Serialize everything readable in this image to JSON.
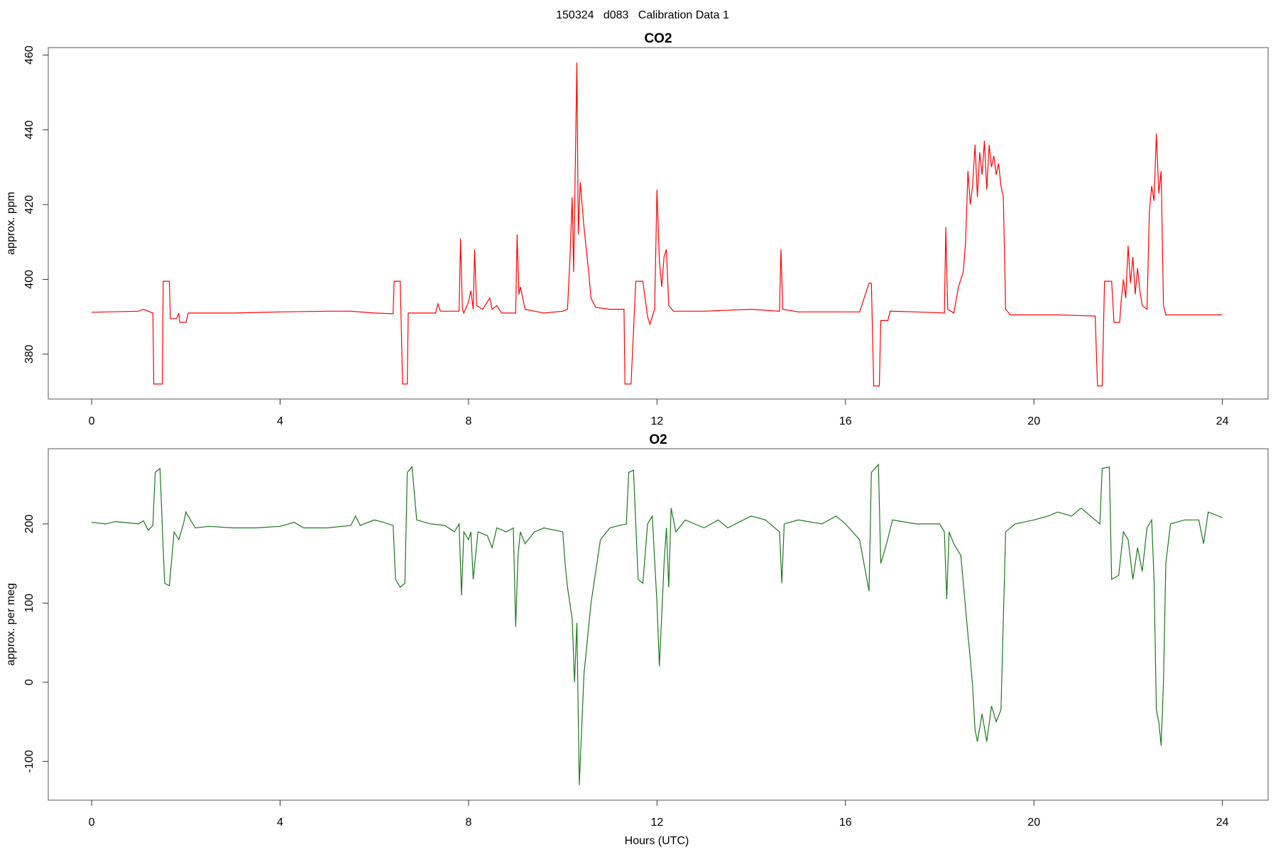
{
  "title": "150324   d083   Calibration Data 1",
  "chart_data": [
    {
      "type": "line",
      "title": "CO2",
      "ylabel": "approx. ppm",
      "color": "#ff0000",
      "xlim": [
        -0.92,
        24.97
      ],
      "xticks": [
        0,
        4,
        8,
        12,
        16,
        20,
        24
      ],
      "ylim": [
        368,
        462
      ],
      "yticks": [
        380,
        400,
        420,
        440,
        460
      ],
      "x": [
        0,
        1,
        1.1,
        1.2,
        1.3,
        1.32,
        1.5,
        1.52,
        1.65,
        1.67,
        1.8,
        1.85,
        1.87,
        2,
        2.05,
        3,
        4,
        5,
        5.5,
        6,
        6.4,
        6.42,
        6.55,
        6.6,
        6.7,
        6.72,
        7.3,
        7.35,
        7.4,
        7.8,
        7.83,
        7.87,
        7.9,
        8,
        8.05,
        8.1,
        8.13,
        8.17,
        8.3,
        8.45,
        8.5,
        8.6,
        8.7,
        9,
        9.03,
        9.07,
        9.1,
        9.2,
        9.4,
        9.6,
        10,
        10.1,
        10.15,
        10.2,
        10.23,
        10.27,
        10.3,
        10.33,
        10.37,
        10.45,
        10.55,
        10.6,
        10.7,
        11,
        11.3,
        11.32,
        11.45,
        11.55,
        11.7,
        11.8,
        11.85,
        11.95,
        12,
        12.05,
        12.1,
        12.15,
        12.2,
        12.25,
        12.35,
        13,
        14,
        14.6,
        14.63,
        14.67,
        15,
        16.3,
        16.5,
        16.55,
        16.6,
        16.72,
        16.75,
        16.9,
        16.95,
        17.5,
        18.1,
        18.13,
        18.17,
        18.3,
        18.4,
        18.5,
        18.55,
        18.6,
        18.65,
        18.7,
        18.75,
        18.8,
        18.85,
        18.9,
        18.95,
        19,
        19.05,
        19.1,
        19.15,
        19.2,
        19.25,
        19.3,
        19.35,
        19.4,
        19.5,
        20,
        20.5,
        21.3,
        21.35,
        21.45,
        21.5,
        21.65,
        21.7,
        21.82,
        21.85,
        21.9,
        21.95,
        22,
        22.05,
        22.1,
        22.15,
        22.2,
        22.25,
        22.3,
        22.4,
        22.45,
        22.5,
        22.55,
        22.6,
        22.65,
        22.7,
        22.75,
        22.8,
        24
      ],
      "values": [
        391.2,
        391.5,
        392,
        391.5,
        391,
        372,
        372,
        399.5,
        399.5,
        389.5,
        389.5,
        391,
        388.5,
        388.5,
        391,
        391,
        391.3,
        391.5,
        391.5,
        391,
        390.8,
        399.5,
        399.5,
        372,
        372,
        391,
        391,
        393.5,
        391.5,
        391.5,
        411,
        392,
        391,
        394,
        397,
        392,
        408,
        393,
        392,
        395,
        392,
        393,
        391,
        391,
        412,
        396,
        398,
        392,
        391.5,
        391,
        391.5,
        392,
        405,
        422,
        402,
        433,
        458,
        412,
        426,
        414,
        402,
        395,
        392.5,
        392,
        392,
        372,
        372,
        399.5,
        399.5,
        390,
        388,
        392,
        424,
        405,
        398,
        406,
        408,
        393,
        391.5,
        391.5,
        392,
        391.5,
        408,
        392,
        391.3,
        391.3,
        399,
        399,
        371.5,
        371.5,
        389,
        389,
        391.5,
        391.3,
        391,
        414,
        392,
        391,
        398,
        402,
        410,
        429,
        420,
        425,
        436,
        422,
        434,
        428,
        437,
        424,
        436,
        430,
        433,
        428,
        431,
        425,
        422,
        392,
        390.5,
        390.5,
        390.5,
        390.2,
        371.5,
        371.5,
        399.5,
        399.5,
        388.5,
        388.5,
        394,
        400,
        395,
        409,
        399,
        406,
        396,
        403,
        397,
        393,
        392,
        418,
        425,
        421,
        439,
        423,
        429,
        393,
        390.5,
        390.5
      ]
    },
    {
      "type": "line",
      "title": "O2",
      "ylabel": "approx. per meg",
      "xlabel": "Hours (UTC)",
      "color": "#1a7a1a",
      "xlim": [
        -0.92,
        24.97
      ],
      "xticks": [
        0,
        4,
        8,
        12,
        16,
        20,
        24
      ],
      "ylim": [
        -149,
        295
      ],
      "yticks": [
        -100,
        0,
        100,
        200
      ],
      "x": [
        0,
        0.3,
        0.5,
        1,
        1.1,
        1.2,
        1.3,
        1.35,
        1.45,
        1.55,
        1.65,
        1.75,
        1.85,
        1.95,
        2,
        2.2,
        2.5,
        3,
        3.5,
        4,
        4.3,
        4.5,
        5,
        5.5,
        5.6,
        5.7,
        6,
        6.2,
        6.4,
        6.45,
        6.55,
        6.65,
        6.7,
        6.8,
        6.9,
        7.2,
        7.5,
        7.7,
        7.8,
        7.85,
        7.9,
        8,
        8.05,
        8.1,
        8.2,
        8.4,
        8.5,
        8.6,
        8.8,
        8.95,
        9,
        9.05,
        9.1,
        9.2,
        9.4,
        9.6,
        10,
        10.05,
        10.1,
        10.2,
        10.25,
        10.3,
        10.35,
        10.45,
        10.6,
        10.8,
        11,
        11.2,
        11.35,
        11.4,
        11.5,
        11.6,
        11.7,
        11.8,
        11.9,
        12,
        12.05,
        12.15,
        12.2,
        12.25,
        12.3,
        12.4,
        12.6,
        13,
        13.3,
        13.5,
        14,
        14.3,
        14.6,
        14.65,
        14.7,
        15,
        15.5,
        15.8,
        16,
        16.3,
        16.5,
        16.55,
        16.7,
        16.75,
        16.85,
        17,
        17.5,
        18,
        18.1,
        18.15,
        18.2,
        18.3,
        18.45,
        18.6,
        18.65,
        18.7,
        18.75,
        18.8,
        18.9,
        19,
        19.1,
        19.2,
        19.3,
        19.4,
        19.6,
        20,
        20.3,
        20.5,
        20.8,
        21,
        21.3,
        21.4,
        21.45,
        21.6,
        21.65,
        21.8,
        21.9,
        22,
        22.1,
        22.2,
        22.3,
        22.4,
        22.5,
        22.55,
        22.6,
        22.65,
        22.7,
        22.75,
        22.8,
        22.9,
        23.2,
        23.5,
        23.6,
        23.7,
        24
      ],
      "values": [
        202,
        200,
        203,
        200,
        204,
        192,
        198,
        265,
        270,
        125,
        122,
        190,
        180,
        200,
        215,
        195,
        197,
        195,
        195,
        197,
        202,
        195,
        195,
        198,
        210,
        198,
        205,
        202,
        198,
        130,
        120,
        125,
        265,
        272,
        205,
        200,
        198,
        190,
        200,
        110,
        190,
        180,
        190,
        130,
        190,
        185,
        170,
        195,
        190,
        195,
        70,
        160,
        190,
        175,
        190,
        195,
        190,
        150,
        120,
        80,
        0,
        75,
        -130,
        10,
        100,
        180,
        195,
        198,
        200,
        265,
        268,
        130,
        125,
        200,
        210,
        100,
        20,
        150,
        195,
        120,
        220,
        190,
        205,
        195,
        205,
        195,
        210,
        205,
        190,
        125,
        200,
        205,
        200,
        210,
        200,
        180,
        115,
        265,
        275,
        150,
        170,
        205,
        200,
        200,
        190,
        105,
        190,
        175,
        160,
        60,
        30,
        -5,
        -60,
        -75,
        -40,
        -75,
        -30,
        -50,
        -35,
        190,
        200,
        205,
        210,
        215,
        210,
        220,
        205,
        200,
        270,
        272,
        130,
        135,
        190,
        180,
        130,
        170,
        140,
        195,
        205,
        130,
        -35,
        -50,
        -80,
        0,
        150,
        200,
        205,
        205,
        175,
        215,
        208
      ]
    }
  ]
}
